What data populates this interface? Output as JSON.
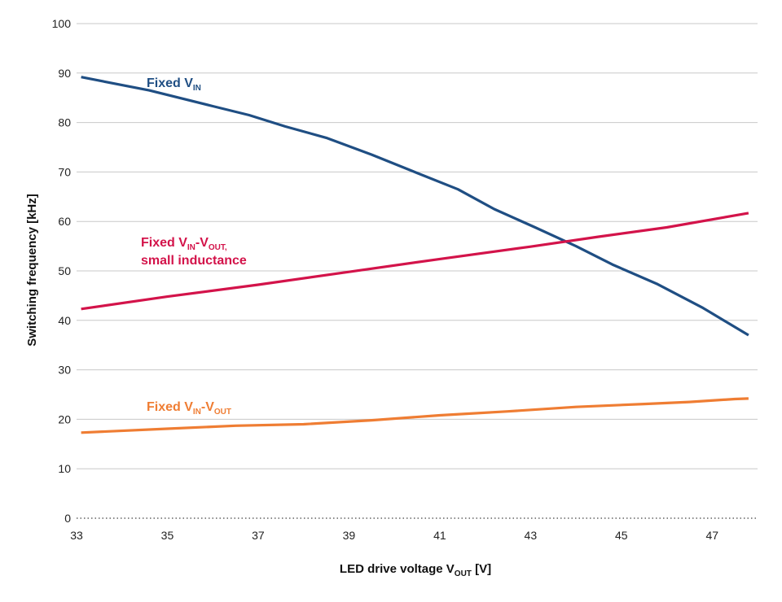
{
  "chart_data": {
    "type": "line",
    "xlabel": {
      "text": "LED drive voltage V",
      "sub": "OUT",
      "after": " [V]"
    },
    "ylabel": "Switching frequency [kHz]",
    "xlim": [
      33,
      48
    ],
    "ylim": [
      0,
      100
    ],
    "x_ticks": [
      33,
      35,
      37,
      39,
      41,
      43,
      45,
      47
    ],
    "y_ticks": [
      0,
      10,
      20,
      30,
      40,
      50,
      60,
      70,
      80,
      90,
      100
    ],
    "grid": true,
    "series": [
      {
        "name": "Fixed VIN",
        "label_parts": [
          {
            "t": "Fixed V"
          },
          {
            "t": "IN",
            "sub": true
          }
        ],
        "color": "#1f4e83",
        "x": [
          33.1,
          34.6,
          36.0,
          36.8,
          37.6,
          38.5,
          39.5,
          40.5,
          41.4,
          42.2,
          43.1,
          44.0,
          44.8,
          45.8,
          46.8,
          47.8
        ],
        "values": [
          89.2,
          86.5,
          83.3,
          81.5,
          79.2,
          76.9,
          73.5,
          69.8,
          66.5,
          62.5,
          58.8,
          55.0,
          51.3,
          47.3,
          42.5,
          37.0
        ]
      },
      {
        "name": "Fixed VIN-VOUT, small inductance",
        "label_parts": [
          {
            "t": "Fixed V"
          },
          {
            "t": "IN",
            "sub": true
          },
          {
            "t": "-V"
          },
          {
            "t": "OUT,",
            "sub": true
          }
        ],
        "label_line2": "small inductance",
        "color": "#d3134a",
        "x": [
          33.1,
          35.0,
          37.0,
          39.0,
          41.0,
          43.0,
          44.5,
          46.0,
          47.8
        ],
        "values": [
          42.3,
          44.8,
          47.2,
          49.8,
          52.4,
          54.9,
          56.9,
          58.8,
          61.7
        ]
      },
      {
        "name": "Fixed VIN-VOUT",
        "label_parts": [
          {
            "t": "Fixed V"
          },
          {
            "t": "IN",
            "sub": true
          },
          {
            "t": "-V"
          },
          {
            "t": "OUT",
            "sub": true
          }
        ],
        "color": "#ef7d33",
        "x": [
          33.1,
          35.0,
          36.5,
          38.0,
          39.5,
          41.0,
          42.5,
          44.0,
          45.5,
          46.5,
          47.5,
          47.8
        ],
        "values": [
          17.3,
          18.1,
          18.7,
          19.0,
          19.8,
          20.8,
          21.6,
          22.5,
          23.1,
          23.5,
          24.1,
          24.2
        ]
      }
    ]
  }
}
